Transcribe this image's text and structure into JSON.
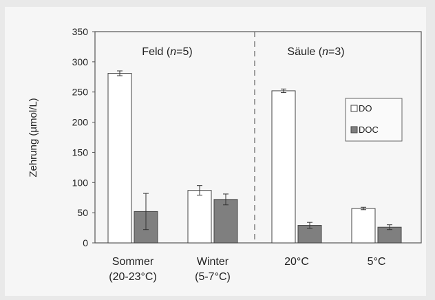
{
  "chart_data": {
    "type": "bar",
    "ylabel": "Zehrung (µmol/L)",
    "ylim": [
      0,
      350
    ],
    "yticks": [
      0,
      50,
      100,
      150,
      200,
      250,
      300,
      350
    ],
    "categories": [
      "Sommer\n(20-23°C)",
      "Winter\n(5-7°C)",
      "20°C",
      "5°C"
    ],
    "groups": [
      {
        "label_prefix": "Feld (",
        "n_label": "n",
        "label_suffix": "=5)"
      },
      {
        "label_prefix": "Säule (",
        "n_label": "n",
        "label_suffix": "=3)"
      }
    ],
    "series": [
      {
        "name": "DO",
        "color": "#ffffff",
        "values": [
          281,
          87,
          252,
          57
        ],
        "errors": [
          4,
          8,
          3,
          2
        ]
      },
      {
        "name": "DOC",
        "color": "#7f7f7f",
        "values": [
          52,
          72,
          29,
          26
        ],
        "errors": [
          30,
          9,
          5,
          4
        ]
      }
    ],
    "legend_position": "right",
    "grid": false
  }
}
